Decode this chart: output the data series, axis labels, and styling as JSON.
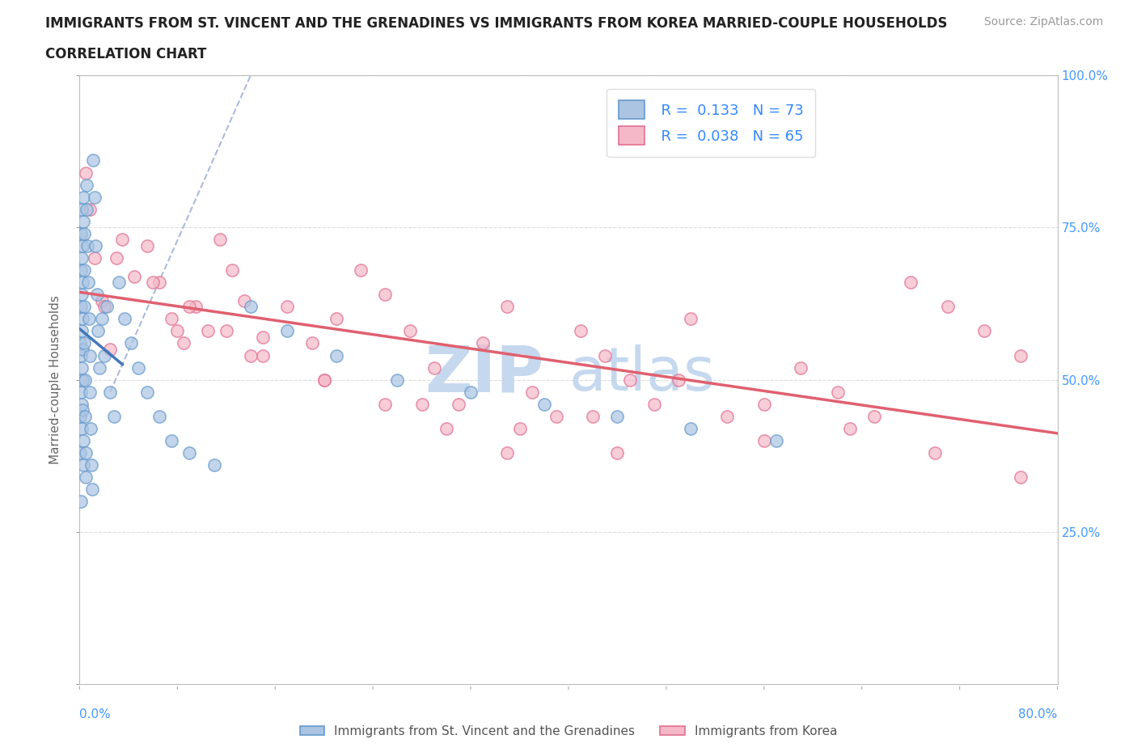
{
  "title_line1": "IMMIGRANTS FROM ST. VINCENT AND THE GRENADINES VS IMMIGRANTS FROM KOREA MARRIED-COUPLE HOUSEHOLDS",
  "title_line2": "CORRELATION CHART",
  "source_text": "Source: ZipAtlas.com",
  "ylabel": "Married-couple Households",
  "legend_blue_label": "Immigrants from St. Vincent and the Grenadines",
  "legend_pink_label": "Immigrants from Korea",
  "R_blue": 0.133,
  "N_blue": 73,
  "R_pink": 0.038,
  "N_pink": 65,
  "blue_face_color": "#aac4e2",
  "blue_edge_color": "#6699cc",
  "pink_face_color": "#f5b8c8",
  "pink_edge_color": "#e07090",
  "blue_line_color": "#4477bb",
  "pink_line_color": "#e06070",
  "dashed_line_color": "#aabbdd",
  "watermark_color": "#c5d8ee",
  "xmin": 0,
  "xmax": 80,
  "ymin": 0,
  "ymax": 100,
  "grid_color": "#dddddd",
  "background_color": "#ffffff",
  "blue_x": [
    0.05,
    0.06,
    0.07,
    0.08,
    0.09,
    0.1,
    0.11,
    0.12,
    0.13,
    0.14,
    0.15,
    0.16,
    0.17,
    0.18,
    0.19,
    0.2,
    0.21,
    0.22,
    0.23,
    0.24,
    0.25,
    0.26,
    0.27,
    0.28,
    0.3,
    0.32,
    0.34,
    0.36,
    0.38,
    0.4,
    0.42,
    0.45,
    0.48,
    0.5,
    0.55,
    0.6,
    0.65,
    0.7,
    0.75,
    0.8,
    0.85,
    0.9,
    0.95,
    1.0,
    1.1,
    1.2,
    1.3,
    1.4,
    1.5,
    1.6,
    1.8,
    2.0,
    2.2,
    2.5,
    2.8,
    3.2,
    3.7,
    4.2,
    4.8,
    5.5,
    6.5,
    7.5,
    9.0,
    11.0,
    14.0,
    17.0,
    21.0,
    26.0,
    32.0,
    38.0,
    44.0,
    50.0,
    57.0
  ],
  "blue_y": [
    56,
    44,
    38,
    30,
    48,
    54,
    62,
    68,
    74,
    78,
    64,
    58,
    52,
    46,
    42,
    70,
    72,
    66,
    60,
    55,
    50,
    45,
    40,
    36,
    76,
    80,
    74,
    68,
    62,
    56,
    50,
    44,
    38,
    34,
    82,
    78,
    72,
    66,
    60,
    54,
    48,
    42,
    36,
    32,
    86,
    80,
    72,
    64,
    58,
    52,
    60,
    54,
    62,
    48,
    44,
    66,
    60,
    56,
    52,
    48,
    44,
    40,
    38,
    36,
    62,
    58,
    54,
    50,
    48,
    46,
    44,
    42,
    40
  ],
  "pink_x": [
    0.5,
    0.8,
    1.2,
    1.8,
    2.5,
    3.5,
    4.5,
    5.5,
    6.5,
    7.5,
    8.5,
    9.5,
    10.5,
    11.5,
    12.5,
    13.5,
    15.0,
    17.0,
    19.0,
    21.0,
    23.0,
    25.0,
    27.0,
    29.0,
    31.0,
    33.0,
    35.0,
    37.0,
    39.0,
    41.0,
    43.0,
    45.0,
    47.0,
    50.0,
    53.0,
    56.0,
    59.0,
    62.0,
    65.0,
    68.0,
    71.0,
    74.0,
    77.0,
    3.0,
    6.0,
    9.0,
    12.0,
    15.0,
    20.0,
    25.0,
    30.0,
    35.0,
    42.0,
    49.0,
    56.0,
    63.0,
    70.0,
    77.0,
    2.0,
    8.0,
    14.0,
    20.0,
    28.0,
    36.0,
    44.0
  ],
  "pink_y": [
    84,
    78,
    70,
    63,
    55,
    73,
    67,
    72,
    66,
    60,
    56,
    62,
    58,
    73,
    68,
    63,
    57,
    62,
    56,
    60,
    68,
    64,
    58,
    52,
    46,
    56,
    62,
    48,
    44,
    58,
    54,
    50,
    46,
    60,
    44,
    40,
    52,
    48,
    44,
    66,
    62,
    58,
    54,
    70,
    66,
    62,
    58,
    54,
    50,
    46,
    42,
    38,
    44,
    50,
    46,
    42,
    38,
    34,
    62,
    58,
    54,
    50,
    46,
    42,
    38
  ]
}
